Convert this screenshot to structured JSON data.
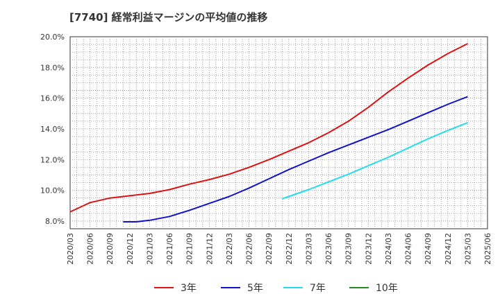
{
  "title": "[7740]  経常利益マージンの平均値の推移",
  "chart_data": {
    "type": "line",
    "title": "[7740]  経常利益マージンの平均値の推移",
    "y_unit": "%",
    "ylim": [
      7.5,
      20.0
    ],
    "y_ticks": [
      "8.0%",
      "10.0%",
      "12.0%",
      "14.0%",
      "16.0%",
      "18.0%",
      "20.0%"
    ],
    "y_tick_values": [
      8,
      10,
      12,
      14,
      16,
      18,
      20
    ],
    "x_ticks": [
      "2020/03",
      "2020/06",
      "2020/09",
      "2020/12",
      "2021/03",
      "2021/06",
      "2021/09",
      "2021/12",
      "2022/03",
      "2022/06",
      "2022/09",
      "2022/12",
      "2023/03",
      "2023/06",
      "2023/09",
      "2023/12",
      "2024/03",
      "2024/06",
      "2024/09",
      "2024/12",
      "2025/03",
      "2025/06"
    ],
    "grid": true,
    "legend_position": "bottom",
    "series": [
      {
        "name": "3年",
        "color": "#dd1111",
        "x": [
          "2020/03",
          "2020/06",
          "2020/09",
          "2020/12",
          "2021/03",
          "2021/06",
          "2021/09",
          "2021/12",
          "2022/03",
          "2022/06",
          "2022/09",
          "2022/12",
          "2023/03",
          "2023/06",
          "2023/09",
          "2023/12",
          "2024/03",
          "2024/06",
          "2024/09",
          "2024/12",
          "2025/03"
        ],
        "values": [
          8.6,
          9.2,
          9.5,
          9.65,
          9.8,
          10.05,
          10.4,
          10.7,
          11.05,
          11.5,
          12.0,
          12.55,
          13.1,
          13.75,
          14.5,
          15.4,
          16.4,
          17.3,
          18.15,
          18.9,
          19.55
        ]
      },
      {
        "name": "5年",
        "color": "#1111cc",
        "x": [
          "2020/11",
          "2021/01",
          "2021/03",
          "2021/06",
          "2021/09",
          "2021/12",
          "2022/03",
          "2022/06",
          "2022/09",
          "2022/12",
          "2023/03",
          "2023/06",
          "2023/09",
          "2023/12",
          "2024/03",
          "2024/06",
          "2024/09",
          "2024/12",
          "2025/03"
        ],
        "values": [
          7.95,
          7.95,
          8.05,
          8.3,
          8.7,
          9.15,
          9.6,
          10.15,
          10.75,
          11.35,
          11.9,
          12.45,
          12.95,
          13.45,
          13.95,
          14.5,
          15.05,
          15.6,
          16.1
        ]
      },
      {
        "name": "7年",
        "color": "#22ddee",
        "x": [
          "2022/11",
          "2022/12",
          "2023/03",
          "2023/06",
          "2023/09",
          "2023/12",
          "2024/03",
          "2024/06",
          "2024/09",
          "2024/12",
          "2025/03"
        ],
        "values": [
          9.45,
          9.6,
          10.05,
          10.55,
          11.05,
          11.6,
          12.15,
          12.75,
          13.35,
          13.9,
          14.4
        ]
      },
      {
        "name": "10年",
        "color": "#228822",
        "x": [],
        "values": []
      }
    ]
  }
}
